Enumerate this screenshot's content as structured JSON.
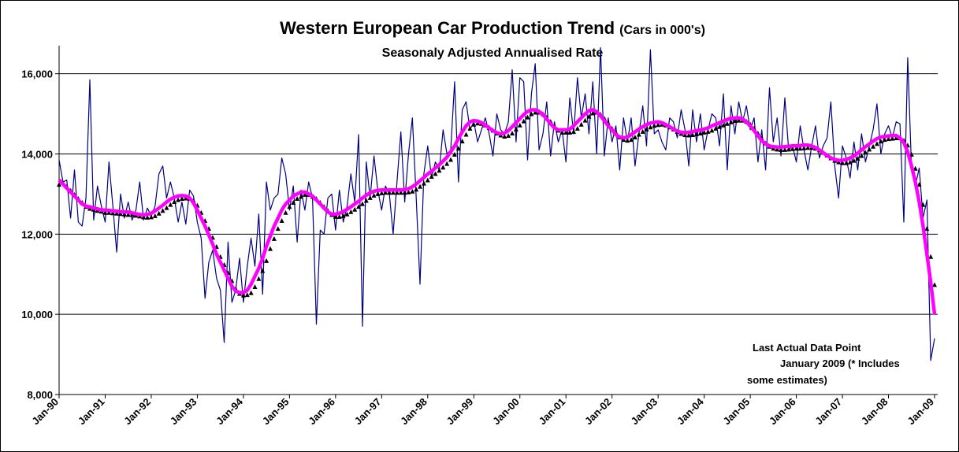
{
  "chart_data": {
    "type": "line",
    "title": "Western European Car Production Trend ",
    "title_note": "(Cars in 000's)",
    "subtitle": "Seasonaly Adjusted Annualised Rate",
    "annotation": [
      "Last Actual Data Point",
      "January 2009 (* Includes",
      "some estimates)"
    ],
    "categories": [
      "Jan-90",
      null,
      null,
      null,
      null,
      null,
      null,
      null,
      null,
      null,
      null,
      null,
      "Jan-91",
      null,
      null,
      null,
      null,
      null,
      null,
      null,
      null,
      null,
      null,
      null,
      "Jan-92",
      null,
      null,
      null,
      null,
      null,
      null,
      null,
      null,
      null,
      null,
      null,
      "Jan-93",
      null,
      null,
      null,
      null,
      null,
      null,
      null,
      null,
      null,
      null,
      null,
      "Jan-94",
      null,
      null,
      null,
      null,
      null,
      null,
      null,
      null,
      null,
      null,
      null,
      "Jan-95",
      null,
      null,
      null,
      null,
      null,
      null,
      null,
      null,
      null,
      null,
      null,
      "Jan-96",
      null,
      null,
      null,
      null,
      null,
      null,
      null,
      null,
      null,
      null,
      null,
      "Jan-97",
      null,
      null,
      null,
      null,
      null,
      null,
      null,
      null,
      null,
      null,
      null,
      "Jan-98",
      null,
      null,
      null,
      null,
      null,
      null,
      null,
      null,
      null,
      null,
      null,
      "Jan-99",
      null,
      null,
      null,
      null,
      null,
      null,
      null,
      null,
      null,
      null,
      null,
      "Jan-00",
      null,
      null,
      null,
      null,
      null,
      null,
      null,
      null,
      null,
      null,
      null,
      "Jan-01",
      null,
      null,
      null,
      null,
      null,
      null,
      null,
      null,
      null,
      null,
      null,
      "Jan-02",
      null,
      null,
      null,
      null,
      null,
      null,
      null,
      null,
      null,
      null,
      null,
      "Jan-03",
      null,
      null,
      null,
      null,
      null,
      null,
      null,
      null,
      null,
      null,
      null,
      "Jan-04",
      null,
      null,
      null,
      null,
      null,
      null,
      null,
      null,
      null,
      null,
      null,
      "Jan-05",
      null,
      null,
      null,
      null,
      null,
      null,
      null,
      null,
      null,
      null,
      null,
      "Jan-06",
      null,
      null,
      null,
      null,
      null,
      null,
      null,
      null,
      null,
      null,
      null,
      "Jan-07",
      null,
      null,
      null,
      null,
      null,
      null,
      null,
      null,
      null,
      null,
      null,
      "Jan-08",
      null,
      null,
      null,
      null,
      null,
      null,
      null,
      null,
      null,
      null,
      null,
      "Jan-09"
    ],
    "series": [
      {
        "color": "#000080",
        "style": "line",
        "values": [
          13850,
          13300,
          13350,
          12400,
          13600,
          12300,
          12200,
          12900,
          15850,
          12350,
          13200,
          12700,
          12300,
          13800,
          12700,
          11550,
          13000,
          12400,
          12800,
          12350,
          12600,
          13300,
          12350,
          12650,
          12450,
          12700,
          13500,
          13700,
          12900,
          13300,
          12900,
          12300,
          12800,
          12250,
          13100,
          12950,
          12300,
          11900,
          10400,
          11300,
          11600,
          10900,
          10600,
          9300,
          11800,
          10300,
          10600,
          11400,
          10300,
          11200,
          11900,
          11200,
          12500,
          10500,
          13300,
          12600,
          12900,
          13000,
          13900,
          13500,
          12600,
          13200,
          11800,
          13100,
          12600,
          13300,
          12900,
          9750,
          12100,
          12000,
          12900,
          13000,
          12100,
          13100,
          12300,
          12700,
          13500,
          12800,
          14480,
          9700,
          13800,
          12900,
          13950,
          13100,
          12600,
          13200,
          13000,
          12000,
          13300,
          14550,
          12800,
          14000,
          14900,
          12900,
          10750,
          13500,
          14200,
          13400,
          13800,
          13600,
          14600,
          14000,
          14100,
          15800,
          13300,
          15100,
          15300,
          14600,
          14800,
          14300,
          14600,
          14900,
          14500,
          13950,
          15000,
          14600,
          14500,
          14800,
          16100,
          14300,
          15900,
          15800,
          13850,
          15500,
          16250,
          14100,
          14500,
          15300,
          13950,
          14800,
          14300,
          14600,
          13800,
          15400,
          14500,
          15900,
          14900,
          15500,
          14500,
          15800,
          14000,
          16650,
          13950,
          14900,
          14300,
          14700,
          13600,
          14900,
          14300,
          14900,
          13700,
          14500,
          15200,
          14200,
          16600,
          14500,
          14600,
          14300,
          14100,
          14900,
          14800,
          14400,
          15100,
          14600,
          13700,
          15100,
          14300,
          15000,
          14100,
          14600,
          15000,
          14900,
          14200,
          15500,
          13600,
          15200,
          14500,
          15300,
          14800,
          15200,
          14600,
          14900,
          13800,
          14600,
          13600,
          15650,
          14300,
          14900,
          13950,
          15400,
          14100,
          14200,
          13800,
          14700,
          14100,
          13600,
          14200,
          14700,
          13900,
          14200,
          14400,
          15300,
          13700,
          12900,
          14200,
          13900,
          13400,
          14300,
          13600,
          14500,
          13800,
          14200,
          14600,
          15250,
          14000,
          14500,
          14700,
          14400,
          14800,
          14750,
          12300,
          16400,
          13600,
          13200,
          13650,
          12400,
          12850,
          8850,
          9400
        ]
      },
      {
        "color": "#000000",
        "style": "triangles",
        "values": [
          13300,
          13350,
          13250,
          13150,
          13050,
          12950,
          12850,
          12750,
          12700,
          12680,
          12650,
          12630,
          12600,
          12600,
          12590,
          12580,
          12570,
          12560,
          12550,
          12550,
          12530,
          12510,
          12490,
          12480,
          12490,
          12520,
          12580,
          12650,
          12720,
          12800,
          12870,
          12920,
          12950,
          12960,
          12950,
          12900,
          12780,
          12600,
          12400,
          12200,
          11980,
          11750,
          11500,
          11300,
          11100,
          10900,
          10700,
          10580,
          10540,
          10550,
          10600,
          10750,
          10950,
          11150,
          11400,
          11700,
          11950,
          12200,
          12400,
          12600,
          12750,
          12850,
          12950,
          13000,
          13050,
          13050,
          13000,
          12950,
          12850,
          12750,
          12650,
          12550,
          12500,
          12500,
          12520,
          12560,
          12620,
          12680,
          12750,
          12820,
          12900,
          12970,
          13030,
          13070,
          13090,
          13100,
          13100,
          13100,
          13100,
          13100,
          13100,
          13110,
          13130,
          13180,
          13250,
          13330,
          13410,
          13500,
          13570,
          13650,
          13730,
          13820,
          13920,
          14050,
          14200,
          14380,
          14550,
          14700,
          14800,
          14830,
          14820,
          14780,
          14720,
          14650,
          14580,
          14530,
          14500,
          14520,
          14580,
          14680,
          14780,
          14880,
          14980,
          15060,
          15100,
          15100,
          15060,
          14980,
          14870,
          14750,
          14650,
          14600,
          14600,
          14600,
          14620,
          14700,
          14800,
          14900,
          15000,
          15080,
          15100,
          15050,
          14950,
          14830,
          14700,
          14600,
          14480,
          14420,
          14400,
          14420,
          14480,
          14550,
          14620,
          14680,
          14730,
          14770,
          14790,
          14800,
          14780,
          14730,
          14680,
          14620,
          14570,
          14540,
          14530,
          14540,
          14560,
          14580,
          14600,
          14620,
          14650,
          14700,
          14740,
          14780,
          14820,
          14860,
          14890,
          14900,
          14900,
          14870,
          14800,
          14700,
          14580,
          14450,
          14330,
          14250,
          14200,
          14180,
          14170,
          14170,
          14180,
          14190,
          14200,
          14200,
          14210,
          14220,
          14220,
          14200,
          14160,
          14100,
          14030,
          13960,
          13900,
          13860,
          13840,
          13840,
          13860,
          13900,
          13950,
          14020,
          14100,
          14180,
          14250,
          14320,
          14380,
          14420,
          14440,
          14450,
          14460,
          14460,
          14400,
          14280,
          14050,
          13700,
          13300,
          12800,
          12200,
          11500,
          10800
        ]
      },
      {
        "color": "#ff00ff",
        "style": "thick",
        "values": [
          13350,
          13250,
          13150,
          13050,
          12950,
          12850,
          12750,
          12700,
          12680,
          12650,
          12630,
          12600,
          12600,
          12590,
          12580,
          12570,
          12560,
          12550,
          12550,
          12530,
          12510,
          12490,
          12480,
          12490,
          12520,
          12580,
          12650,
          12720,
          12800,
          12870,
          12920,
          12950,
          12960,
          12950,
          12900,
          12780,
          12600,
          12400,
          12200,
          11980,
          11750,
          11500,
          11300,
          11100,
          10900,
          10700,
          10580,
          10540,
          10550,
          10600,
          10750,
          10950,
          11150,
          11400,
          11700,
          11950,
          12200,
          12400,
          12600,
          12750,
          12850,
          12950,
          13000,
          13050,
          13050,
          13000,
          12950,
          12850,
          12750,
          12650,
          12550,
          12500,
          12500,
          12520,
          12560,
          12620,
          12680,
          12750,
          12820,
          12900,
          12970,
          13030,
          13070,
          13090,
          13100,
          13100,
          13100,
          13100,
          13100,
          13100,
          13110,
          13130,
          13180,
          13250,
          13330,
          13410,
          13500,
          13570,
          13650,
          13730,
          13820,
          13920,
          14050,
          14200,
          14380,
          14550,
          14700,
          14800,
          14830,
          14820,
          14780,
          14720,
          14650,
          14580,
          14530,
          14500,
          14520,
          14580,
          14680,
          14780,
          14880,
          14980,
          15060,
          15100,
          15100,
          15060,
          14980,
          14870,
          14750,
          14650,
          14600,
          14600,
          14600,
          14620,
          14700,
          14800,
          14900,
          15000,
          15080,
          15100,
          15050,
          14950,
          14830,
          14700,
          14600,
          14480,
          14420,
          14400,
          14420,
          14480,
          14550,
          14620,
          14680,
          14730,
          14770,
          14790,
          14800,
          14780,
          14730,
          14680,
          14620,
          14570,
          14540,
          14530,
          14540,
          14560,
          14580,
          14600,
          14620,
          14650,
          14700,
          14740,
          14780,
          14820,
          14860,
          14890,
          14900,
          14900,
          14870,
          14800,
          14700,
          14580,
          14450,
          14330,
          14250,
          14200,
          14180,
          14170,
          14170,
          14180,
          14190,
          14200,
          14200,
          14210,
          14220,
          14220,
          14200,
          14160,
          14100,
          14030,
          13960,
          13900,
          13860,
          13840,
          13840,
          13860,
          13900,
          13950,
          14020,
          14100,
          14180,
          14250,
          14320,
          14380,
          14420,
          14440,
          14450,
          14460,
          14460,
          14400,
          14280,
          14050,
          13700,
          13300,
          12800,
          12200,
          11500,
          10800,
          10000
        ]
      }
    ],
    "ylim": [
      8000,
      16700
    ],
    "yticks": [
      {
        "value": 8000,
        "label": "8,000"
      },
      {
        "value": 10000,
        "label": "10,000"
      },
      {
        "value": 12000,
        "label": "12,000"
      },
      {
        "value": 14000,
        "label": "14,000"
      },
      {
        "value": 16000,
        "label": "16,000"
      }
    ],
    "grid": true
  }
}
